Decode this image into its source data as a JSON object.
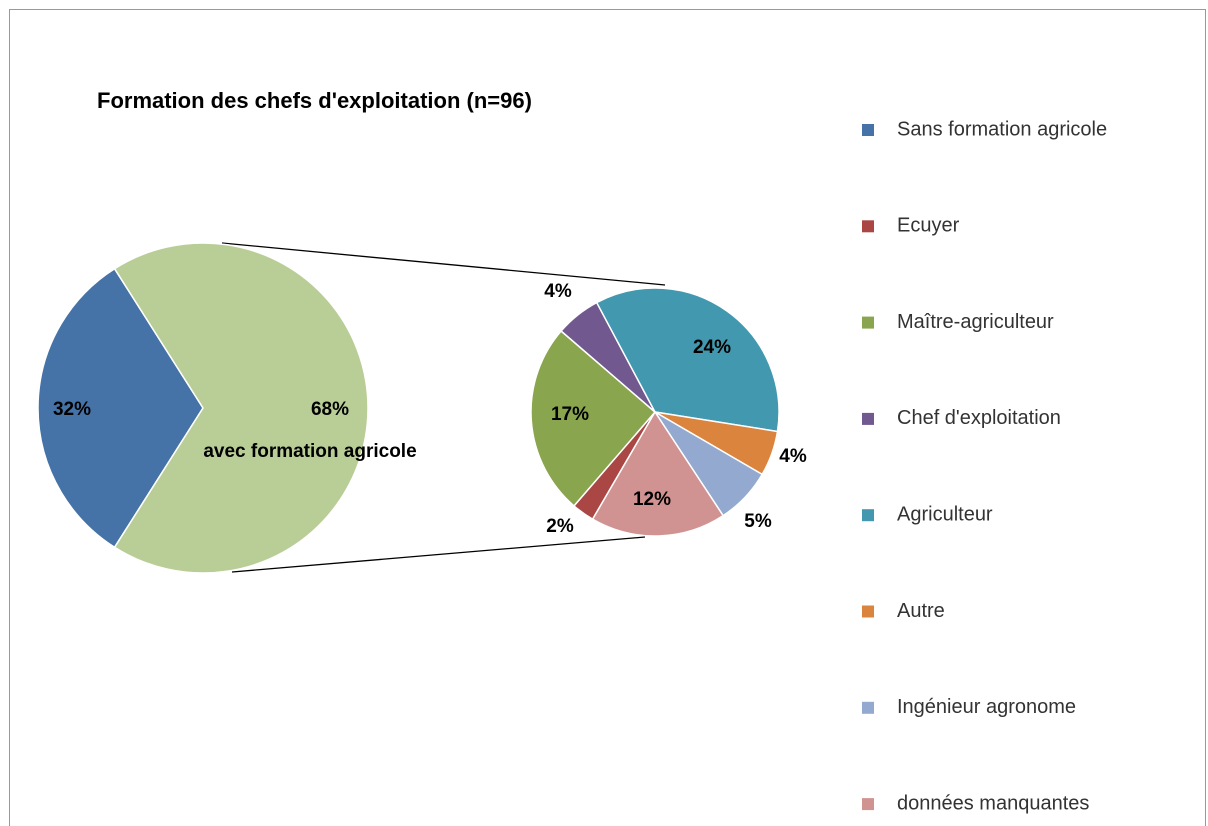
{
  "chart_data": {
    "type": "pie-of-pie",
    "title": "Formation des chefs d'exploitation (n=96)",
    "categories": [
      "Sans formation agricole",
      "Ecuyer",
      "Maître-agriculteur",
      "Chef d'exploitation",
      "Agriculteur",
      "Autre",
      "Ingénieur agronome",
      "données manquantes"
    ],
    "values": [
      32,
      2,
      17,
      4,
      24,
      4,
      5,
      12
    ],
    "value_labels": [
      "32%",
      "2%",
      "17%",
      "4%",
      "24%",
      "4%",
      "5%",
      "12%"
    ],
    "colors": [
      "#4572a7",
      "#aa4643",
      "#89a54e",
      "#71588f",
      "#4198af",
      "#db843d",
      "#93a9cf",
      "#d19392"
    ],
    "other": {
      "label": "avec formation agricole",
      "value": 68,
      "value_label": "68%",
      "color": "#b9cd96"
    },
    "legend": "right"
  }
}
